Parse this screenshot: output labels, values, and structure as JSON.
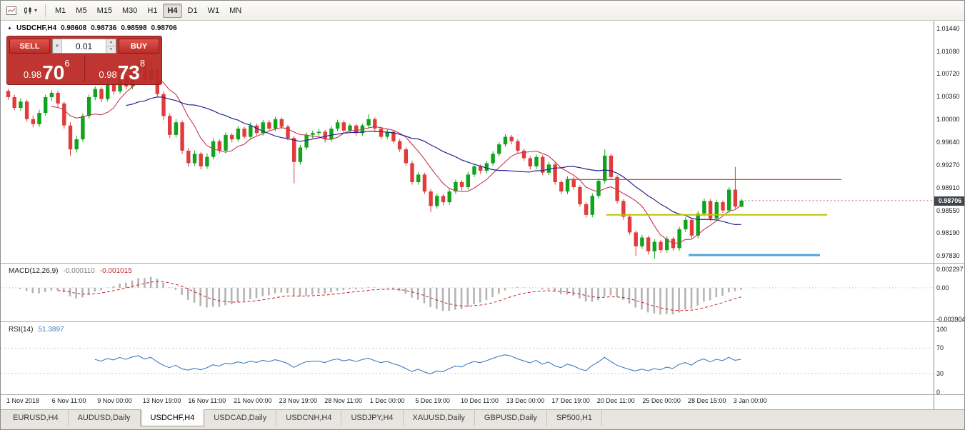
{
  "colors": {
    "up": "#10a31c",
    "down": "#e23b3b",
    "ma_fast": "#c23a50",
    "ma_slow": "#26268f",
    "macd_hist": "#b4b4b4",
    "macd_signal": "#cc2222",
    "rsi_line": "#3f7cc4",
    "level_red": "#e23b3b",
    "level_yellow": "#b9c400",
    "level_blue": "#4da6dd",
    "bid_line": "#cc6666"
  },
  "icons": {
    "caret_down": "▾",
    "collapse_triangle": "▲",
    "spinner_up": "▲",
    "spinner_down": "▼",
    "lot_dropdown": "▼"
  },
  "toolbar": {
    "timeframes": [
      "M1",
      "M5",
      "M15",
      "M30",
      "H1",
      "H4",
      "D1",
      "W1",
      "MN"
    ],
    "active_timeframe": "H4"
  },
  "chart": {
    "symbol": "USDCHF,H4",
    "ohlc": {
      "open": "0.98608",
      "high": "0.98736",
      "low": "0.98598",
      "close": "0.98706"
    },
    "current_price": "0.98706"
  },
  "trade_panel": {
    "sell_label": "SELL",
    "buy_label": "BUY",
    "lot_size": "0.01",
    "sell_price": {
      "prefix": "0.98",
      "big": "70",
      "pip": "6"
    },
    "buy_price": {
      "prefix": "0.98",
      "big": "73",
      "pip": "8"
    }
  },
  "macd": {
    "name": "MACD(12,26,9)",
    "value_main": "-0.000110",
    "value_signal": "-0.001015"
  },
  "rsi": {
    "name": "RSI(14)",
    "value": "51.3897"
  },
  "tabs": {
    "items": [
      "EURUSD,H4",
      "AUDUSD,Daily",
      "USDCHF,H4",
      "USDCAD,Daily",
      "USDCNH,H4",
      "USDJPY,H4",
      "XAUUSD,Daily",
      "GBPUSD,Daily",
      "SP500,H1"
    ],
    "active": "USDCHF,H4"
  },
  "chart_data": {
    "type": "candlestick",
    "symbol": "USDCHF",
    "timeframe": "H4",
    "price_range": [
      0.9783,
      1.0144
    ],
    "price_axis_ticks": [
      1.0144,
      1.0108,
      1.0072,
      1.0036,
      1.0,
      0.9964,
      0.9927,
      0.9891,
      0.9855,
      0.9819,
      0.9783
    ],
    "time_labels": [
      "1 Nov 2018",
      "6 Nov 11:00",
      "9 Nov 00:00",
      "13 Nov 19:00",
      "16 Nov 11:00",
      "21 Nov 00:00",
      "23 Nov 19:00",
      "28 Nov 11:00",
      "1 Dec 00:00",
      "5 Dec 19:00",
      "10 Dec 11:00",
      "13 Dec 00:00",
      "17 Dec 19:00",
      "20 Dec 11:00",
      "25 Dec 00:00",
      "28 Dec 15:00",
      "3 Jan 00:00"
    ],
    "moving_averages": [
      {
        "period": 8,
        "color_key": "ma_fast"
      },
      {
        "period": 20,
        "color_key": "ma_slow"
      }
    ],
    "levels": [
      {
        "price": 0.9904,
        "color_key": "level_red",
        "width": 1.2,
        "x1": 0.607,
        "x2": 0.901
      },
      {
        "price": 0.9848,
        "color_key": "level_yellow",
        "width": 2,
        "x1": 0.649,
        "x2": 0.886
      },
      {
        "price": 0.9784,
        "color_key": "level_blue",
        "width": 3,
        "x1": 0.737,
        "x2": 0.878
      }
    ],
    "macd_panel": {
      "params": [
        12,
        26,
        9
      ],
      "range": [
        -0.003904,
        0.002297
      ],
      "axis_ticks": [
        {
          "v": 0.002297,
          "label": "0.002297"
        },
        {
          "v": 0,
          "label": "0.00"
        },
        {
          "v": -0.003904,
          "label": "-0.003904"
        }
      ],
      "current_main": -0.00011,
      "current_signal": -0.001015
    },
    "rsi_panel": {
      "period": 14,
      "range": [
        0,
        100
      ],
      "levels": [
        70,
        30
      ],
      "axis_ticks": [
        {
          "v": 100,
          "label": "100"
        },
        {
          "v": 70,
          "label": "70"
        },
        {
          "v": 30,
          "label": "30"
        },
        {
          "v": 0,
          "label": "0"
        }
      ],
      "current": 51.3897
    },
    "candles": [
      [
        1.0045,
        1.0048,
        1.0031,
        1.0035
      ],
      [
        1.0035,
        1.0039,
        1.0014,
        1.0018
      ],
      [
        1.0018,
        1.0033,
        1.0013,
        1.0028
      ],
      [
        1.0028,
        1.0031,
        0.9996,
        1.0
      ],
      [
        1.0,
        1.0006,
        0.9987,
        0.9992
      ],
      [
        0.9992,
        1.0015,
        0.9988,
        1.001
      ],
      [
        1.001,
        1.0039,
        1.0006,
        1.0035
      ],
      [
        1.0035,
        1.0046,
        1.0029,
        1.0042
      ],
      [
        1.0042,
        1.0045,
        1.002,
        1.0025
      ],
      [
        1.0025,
        1.0028,
        0.9985,
        0.999
      ],
      [
        0.999,
        0.9995,
        0.9942,
        0.9952
      ],
      [
        0.9952,
        0.9974,
        0.9947,
        0.9968
      ],
      [
        0.9968,
        1.0009,
        0.9964,
        1.0005
      ],
      [
        1.0005,
        1.0039,
        1.0001,
        1.0035
      ],
      [
        1.0035,
        1.0052,
        1.003,
        1.0048
      ],
      [
        1.0048,
        1.0051,
        1.0027,
        1.0032
      ],
      [
        1.0032,
        1.006,
        1.0028,
        1.0056
      ],
      [
        1.0056,
        1.0059,
        1.0039,
        1.0044
      ],
      [
        1.0044,
        1.0072,
        1.004,
        1.0068
      ],
      [
        1.0068,
        1.0071,
        1.0047,
        1.0052
      ],
      [
        1.0052,
        1.0079,
        1.0048,
        1.0075
      ],
      [
        1.0075,
        1.0098,
        1.0071,
        1.0088
      ],
      [
        1.0088,
        1.0092,
        1.0057,
        1.0062
      ],
      [
        1.0062,
        1.0095,
        1.0058,
        1.0078
      ],
      [
        1.0078,
        1.0081,
        1.0035,
        1.004
      ],
      [
        1.004,
        1.0044,
        0.9999,
        1.0005
      ],
      [
        1.0005,
        1.0009,
        0.997,
        0.9975
      ],
      [
        0.9975,
        1.0,
        0.9971,
        0.9995
      ],
      [
        0.9995,
        0.9998,
        0.9945,
        0.995
      ],
      [
        0.995,
        0.9954,
        0.9924,
        0.993
      ],
      [
        0.993,
        0.995,
        0.9926,
        0.9945
      ],
      [
        0.9945,
        0.9948,
        0.992,
        0.9925
      ],
      [
        0.9925,
        0.9946,
        0.9921,
        0.994
      ],
      [
        0.994,
        0.997,
        0.9936,
        0.9965
      ],
      [
        0.9965,
        0.9968,
        0.9946,
        0.995
      ],
      [
        0.995,
        0.9979,
        0.9946,
        0.9975
      ],
      [
        0.9975,
        0.9978,
        0.9963,
        0.9968
      ],
      [
        0.9968,
        0.9989,
        0.9964,
        0.9985
      ],
      [
        0.9985,
        0.9988,
        0.9968,
        0.9972
      ],
      [
        0.9972,
        0.9995,
        0.9968,
        0.999
      ],
      [
        0.999,
        0.9993,
        0.9974,
        0.9978
      ],
      [
        0.9978,
        0.9999,
        0.9974,
        0.9995
      ],
      [
        0.9995,
        0.9999,
        0.9981,
        0.9985
      ],
      [
        0.9985,
        1.0004,
        0.9981,
        1.0
      ],
      [
        1.0,
        1.0003,
        0.9984,
        0.9988
      ],
      [
        0.9988,
        0.9991,
        0.9966,
        0.997
      ],
      [
        0.997,
        0.9973,
        0.9898,
        0.9932
      ],
      [
        0.9932,
        0.9959,
        0.9928,
        0.9955
      ],
      [
        0.9955,
        0.9979,
        0.9951,
        0.9975
      ],
      [
        0.9975,
        0.9982,
        0.997,
        0.9978
      ],
      [
        0.9978,
        0.9985,
        0.9974,
        0.998
      ],
      [
        0.998,
        0.9983,
        0.9963,
        0.9968
      ],
      [
        0.9968,
        0.9989,
        0.9964,
        0.9985
      ],
      [
        0.9985,
        0.9999,
        0.9981,
        0.9995
      ],
      [
        0.9995,
        0.9998,
        0.9978,
        0.9982
      ],
      [
        0.9982,
        0.9993,
        0.9978,
        0.999
      ],
      [
        0.999,
        0.9993,
        0.9974,
        0.9978
      ],
      [
        0.9978,
        0.9993,
        0.9974,
        0.999
      ],
      [
        0.999,
        1.0008,
        0.9986,
        1.0
      ],
      [
        1.0,
        1.0003,
        0.9981,
        0.9985
      ],
      [
        0.9985,
        0.9988,
        0.9968,
        0.9972
      ],
      [
        0.9972,
        0.9984,
        0.9968,
        0.998
      ],
      [
        0.998,
        0.9983,
        0.9961,
        0.9965
      ],
      [
        0.9965,
        0.9968,
        0.9948,
        0.9952
      ],
      [
        0.9952,
        0.9955,
        0.9926,
        0.993
      ],
      [
        0.993,
        0.9934,
        0.9896,
        0.99
      ],
      [
        0.99,
        0.9916,
        0.9896,
        0.9912
      ],
      [
        0.9912,
        0.9915,
        0.9881,
        0.9885
      ],
      [
        0.9885,
        0.9889,
        0.9852,
        0.9862
      ],
      [
        0.9862,
        0.9882,
        0.9858,
        0.9878
      ],
      [
        0.9878,
        0.9881,
        0.9863,
        0.9868
      ],
      [
        0.9868,
        0.9889,
        0.9864,
        0.9885
      ],
      [
        0.9885,
        0.9904,
        0.9881,
        0.99
      ],
      [
        0.99,
        0.9903,
        0.9887,
        0.9892
      ],
      [
        0.9892,
        0.9916,
        0.9888,
        0.9912
      ],
      [
        0.9912,
        0.9929,
        0.9908,
        0.9925
      ],
      [
        0.9925,
        0.9928,
        0.9913,
        0.9918
      ],
      [
        0.9918,
        0.9934,
        0.9914,
        0.993
      ],
      [
        0.993,
        0.9949,
        0.9926,
        0.9945
      ],
      [
        0.9945,
        0.9964,
        0.9941,
        0.996
      ],
      [
        0.996,
        0.9976,
        0.9956,
        0.9972
      ],
      [
        0.9972,
        0.9975,
        0.996,
        0.9965
      ],
      [
        0.9965,
        0.9968,
        0.9946,
        0.995
      ],
      [
        0.995,
        0.9953,
        0.9934,
        0.9938
      ],
      [
        0.9938,
        0.9941,
        0.992,
        0.9925
      ],
      [
        0.9925,
        0.9944,
        0.9921,
        0.994
      ],
      [
        0.994,
        0.9943,
        0.9911,
        0.9915
      ],
      [
        0.9915,
        0.9932,
        0.9911,
        0.9928
      ],
      [
        0.9928,
        0.9931,
        0.9896,
        0.99
      ],
      [
        0.99,
        0.9903,
        0.9881,
        0.9885
      ],
      [
        0.9885,
        0.9909,
        0.9881,
        0.9905
      ],
      [
        0.9905,
        0.9908,
        0.9888,
        0.9892
      ],
      [
        0.9892,
        0.9895,
        0.9861,
        0.9865
      ],
      [
        0.9865,
        0.9868,
        0.9844,
        0.9848
      ],
      [
        0.9848,
        0.9882,
        0.9844,
        0.9878
      ],
      [
        0.9878,
        0.9906,
        0.9874,
        0.9902
      ],
      [
        0.9902,
        0.9952,
        0.9898,
        0.9942
      ],
      [
        0.9942,
        0.9945,
        0.9904,
        0.9908
      ],
      [
        0.9908,
        0.9911,
        0.9866,
        0.987
      ],
      [
        0.987,
        0.9873,
        0.984,
        0.9845
      ],
      [
        0.9845,
        0.9848,
        0.9816,
        0.982
      ],
      [
        0.982,
        0.9823,
        0.9783,
        0.9798
      ],
      [
        0.9798,
        0.9816,
        0.9794,
        0.9812
      ],
      [
        0.9812,
        0.9815,
        0.9785,
        0.979
      ],
      [
        0.979,
        0.9809,
        0.9778,
        0.9805
      ],
      [
        0.9805,
        0.9808,
        0.9788,
        0.9792
      ],
      [
        0.9792,
        0.9814,
        0.9788,
        0.981
      ],
      [
        0.981,
        0.9813,
        0.9791,
        0.9795
      ],
      [
        0.9795,
        0.9829,
        0.9791,
        0.9825
      ],
      [
        0.9825,
        0.9844,
        0.9821,
        0.984
      ],
      [
        0.984,
        0.9843,
        0.9811,
        0.9815
      ],
      [
        0.9815,
        0.9854,
        0.9811,
        0.985
      ],
      [
        0.985,
        0.9874,
        0.9846,
        0.987
      ],
      [
        0.987,
        0.9873,
        0.9838,
        0.9842
      ],
      [
        0.9842,
        0.9872,
        0.9838,
        0.9868
      ],
      [
        0.9868,
        0.9871,
        0.9851,
        0.9855
      ],
      [
        0.9855,
        0.9892,
        0.9851,
        0.9888
      ],
      [
        0.9888,
        0.9924,
        0.9858,
        0.9861
      ],
      [
        0.98608,
        0.98736,
        0.98598,
        0.98706
      ]
    ]
  }
}
